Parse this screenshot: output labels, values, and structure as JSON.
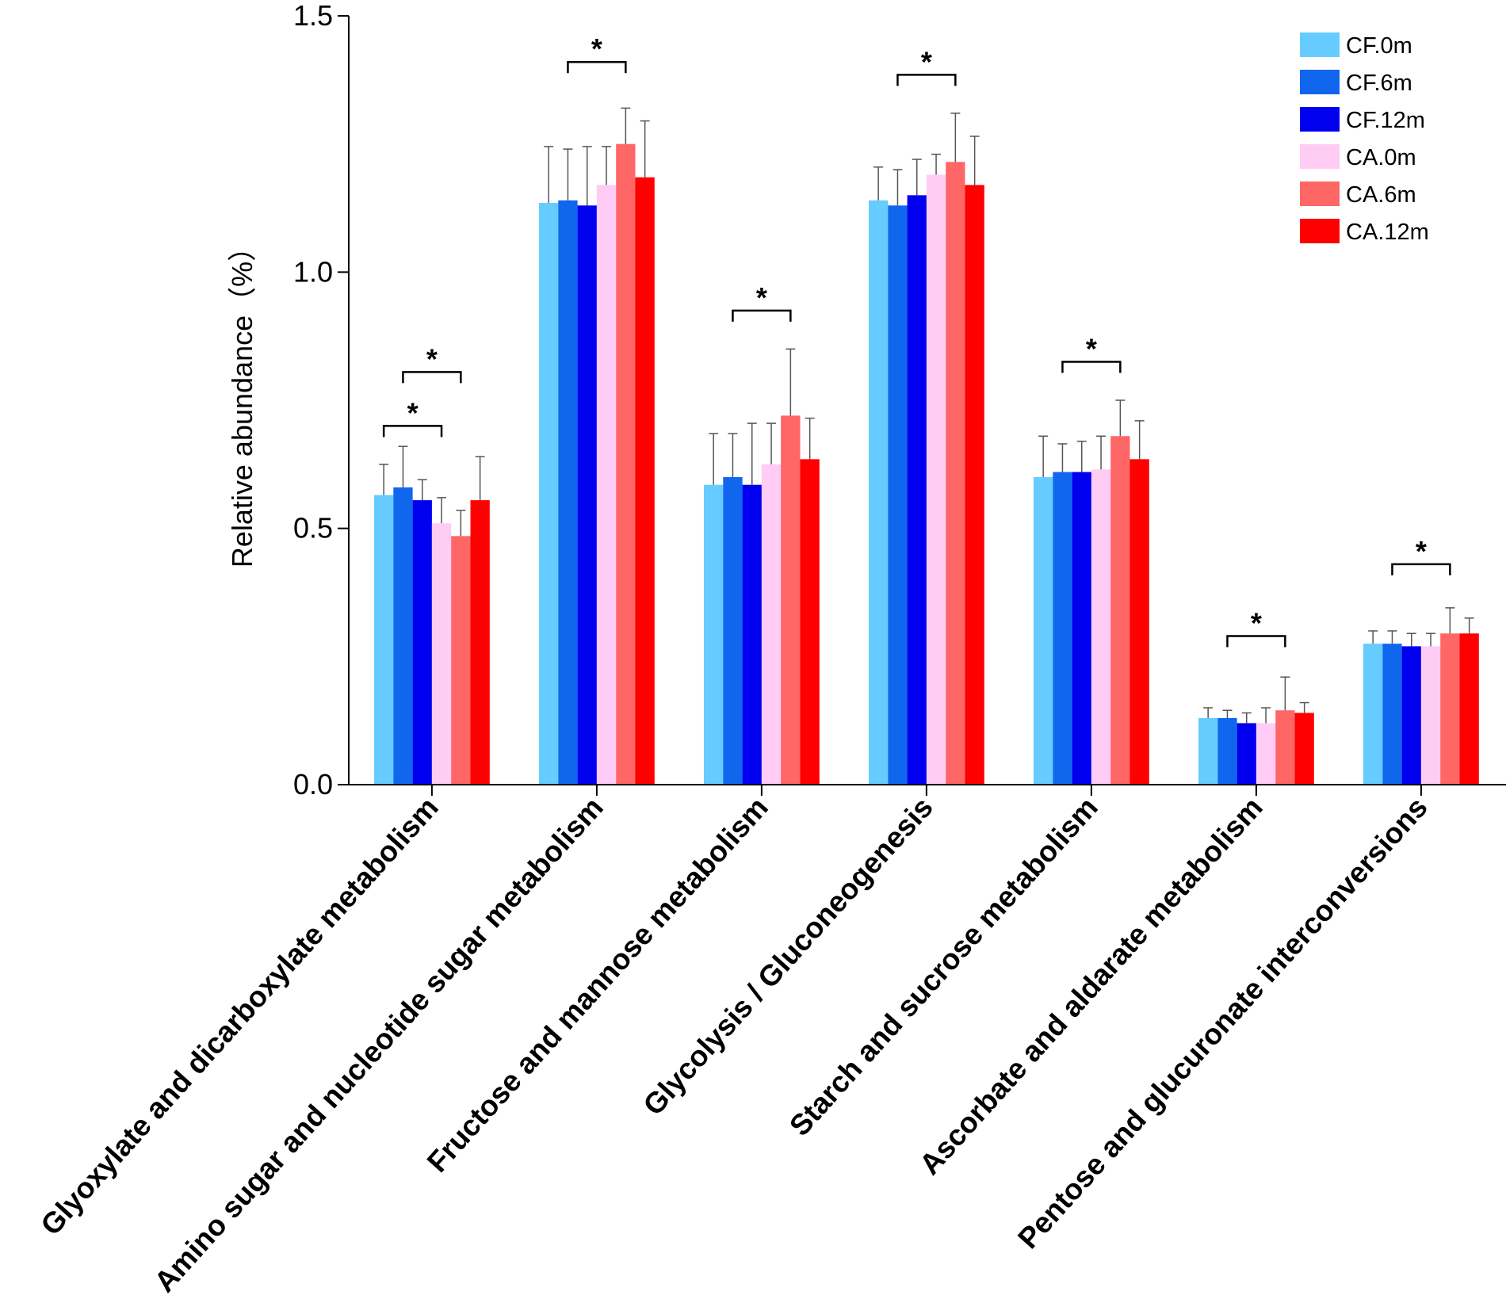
{
  "chart_data": {
    "type": "bar",
    "title": "",
    "xlabel": "",
    "ylabel": "Relative abundance（%）",
    "ylim": [
      0,
      1.5
    ],
    "yticks": [
      "0.0",
      "0.5",
      "1.0",
      "1.5"
    ],
    "grid": false,
    "legend_position": "top-right",
    "categories": [
      "Glyoxylate and dicarboxylate metabolism",
      "Amino sugar and nucleotide sugar metabolism",
      "Fructose and mannose metabolism",
      "Glycolysis / Gluconeogenesis",
      "Starch and sucrose metabolism",
      "Ascorbate and aldarate metabolism",
      "Pentose and glucuronate interconversions"
    ],
    "series": [
      {
        "name": "CF.0m",
        "color": "#66ccff",
        "values": [
          0.565,
          1.135,
          0.585,
          1.14,
          0.6,
          0.13,
          0.275
        ],
        "errors": [
          0.06,
          0.11,
          0.1,
          0.065,
          0.08,
          0.02,
          0.025
        ]
      },
      {
        "name": "CF.6m",
        "color": "#1166ee",
        "values": [
          0.58,
          1.14,
          0.6,
          1.13,
          0.61,
          0.13,
          0.275
        ],
        "errors": [
          0.08,
          0.1,
          0.085,
          0.07,
          0.055,
          0.015,
          0.025
        ]
      },
      {
        "name": "CF.12m",
        "color": "#0000ee",
        "values": [
          0.555,
          1.13,
          0.585,
          1.15,
          0.61,
          0.12,
          0.27
        ],
        "errors": [
          0.04,
          0.115,
          0.12,
          0.07,
          0.06,
          0.02,
          0.025
        ]
      },
      {
        "name": "CA.0m",
        "color": "#ffccf5",
        "values": [
          0.51,
          1.17,
          0.625,
          1.19,
          0.615,
          0.12,
          0.27
        ],
        "errors": [
          0.05,
          0.075,
          0.08,
          0.04,
          0.065,
          0.03,
          0.025
        ]
      },
      {
        "name": "CA.6m",
        "color": "#ff6666",
        "values": [
          0.485,
          1.25,
          0.72,
          1.215,
          0.68,
          0.145,
          0.295
        ],
        "errors": [
          0.05,
          0.07,
          0.13,
          0.095,
          0.07,
          0.065,
          0.05
        ]
      },
      {
        "name": "CA.12m",
        "color": "#ff0000",
        "values": [
          0.555,
          1.185,
          0.635,
          1.17,
          0.635,
          0.14,
          0.295
        ],
        "errors": [
          0.085,
          0.11,
          0.08,
          0.095,
          0.075,
          0.02,
          0.03
        ]
      }
    ],
    "significance": [
      {
        "category": 0,
        "from": 0,
        "to": 3,
        "y": 0.7,
        "label": "*"
      },
      {
        "category": 0,
        "from": 1,
        "to": 4,
        "y": 0.805,
        "label": "*"
      },
      {
        "category": 1,
        "from": 1,
        "to": 4,
        "y": 1.41,
        "label": "*"
      },
      {
        "category": 2,
        "from": 1,
        "to": 4,
        "y": 0.925,
        "label": "*"
      },
      {
        "category": 3,
        "from": 1,
        "to": 4,
        "y": 1.385,
        "label": "*"
      },
      {
        "category": 4,
        "from": 1,
        "to": 4,
        "y": 0.825,
        "label": "*"
      },
      {
        "category": 5,
        "from": 1,
        "to": 4,
        "y": 0.29,
        "label": "*"
      },
      {
        "category": 6,
        "from": 1,
        "to": 4,
        "y": 0.43,
        "label": "*"
      }
    ]
  }
}
